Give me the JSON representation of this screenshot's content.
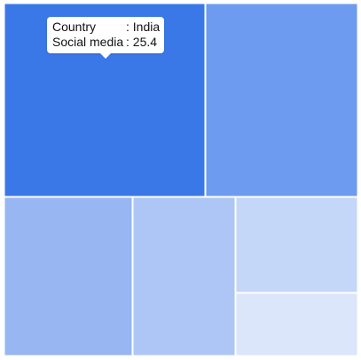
{
  "chart_data": {
    "type": "treemap",
    "colors": {
      "base": "#3b78e7",
      "border": "#ffffff"
    },
    "nodes": [
      {
        "id": "r1",
        "shade": "#3b78e7"
      },
      {
        "id": "r2",
        "shade": "#6c9bef"
      },
      {
        "id": "r3",
        "shade": "#97b6f2"
      },
      {
        "id": "r4",
        "shade": "#adc6f5"
      },
      {
        "id": "r5",
        "shade": "#c5d7f8"
      },
      {
        "id": "r6",
        "shade": "#dbe6fb"
      }
    ]
  },
  "tooltip": {
    "country_label": "Country",
    "country_value": ": India",
    "metric_label": "Social media",
    "metric_value": ": 25.4"
  }
}
